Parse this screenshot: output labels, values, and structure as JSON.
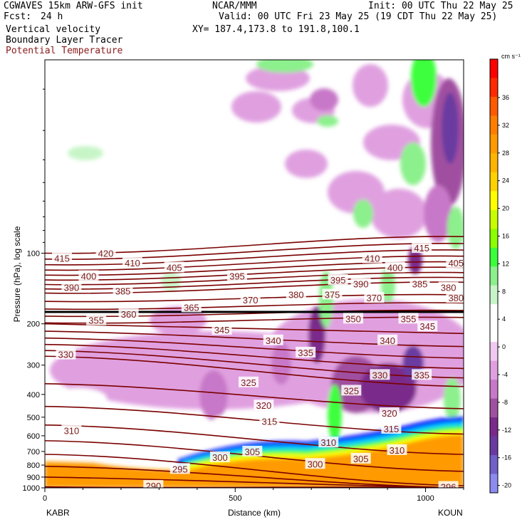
{
  "header": {
    "model": "CGWAVES 15km ARW-GFS init",
    "center": "NCAR/MMM",
    "init": "Init: 00 UTC Thu 22 May 25",
    "fcst_label": "Fcst:",
    "fcst_value": "24 h",
    "valid": "Valid: 00 UTC Fri 23 May 25 (19 CDT Thu 22 May 25)",
    "xy": "XY= 187.4,173.8 to 191.8,100.1",
    "field1": "Vertical velocity",
    "field2": "Boundary Layer Tracer",
    "field3": "Potential Temperature",
    "field3_color": "#8b1a1a"
  },
  "colorbar": {
    "units": "cm s⁻¹",
    "colors": [
      "#ff0000",
      "#ff2a00",
      "#ff5a00",
      "#ff7e00",
      "#ff9a00",
      "#ffb400",
      "#ffd200",
      "#ffff00",
      "#c8ff00",
      "#8cff00",
      "#3cff3c",
      "#8cf08c",
      "#c8f5c8",
      "#ffffff",
      "#ffffff",
      "#f0c8f0",
      "#e0a0e0",
      "#c878c8",
      "#a050a0",
      "#7a2a8a",
      "#6a3aa0",
      "#7060c8",
      "#8c8cf0"
    ],
    "labels": [
      "36",
      "32",
      "28",
      "24",
      "20",
      "16",
      "12",
      "8",
      "4",
      "0",
      "-4",
      "-8",
      "-12",
      "-16",
      "-20"
    ]
  },
  "chart_data": {
    "type": "heatmap",
    "title": "",
    "xlabel": "Distance (km)",
    "ylabel": "Pressure (hPa), log scale",
    "x_ticks": [
      0,
      500,
      1000
    ],
    "xlim": [
      0,
      1100
    ],
    "y_ticks": [
      100,
      200,
      300,
      400,
      500,
      600,
      700,
      800,
      900,
      1000
    ],
    "ylim": [
      1000,
      15
    ],
    "y_scale": "log",
    "x_endpoints": {
      "left": "KABR",
      "right": "KOUN"
    },
    "theta_contour_labels": [
      {
        "value": "415",
        "x": 45,
        "p": 105
      },
      {
        "value": "420",
        "x": 160,
        "p": 100
      },
      {
        "value": "410",
        "x": 230,
        "p": 110
      },
      {
        "value": "405",
        "x": 340,
        "p": 115
      },
      {
        "value": "400",
        "x": 115,
        "p": 125
      },
      {
        "value": "395",
        "x": 505,
        "p": 125
      },
      {
        "value": "390",
        "x": 70,
        "p": 140
      },
      {
        "value": "385",
        "x": 205,
        "p": 145
      },
      {
        "value": "380",
        "x": 660,
        "p": 150
      },
      {
        "value": "375",
        "x": 755,
        "p": 150
      },
      {
        "value": "370",
        "x": 540,
        "p": 158
      },
      {
        "value": "370",
        "x": 865,
        "p": 155
      },
      {
        "value": "365",
        "x": 385,
        "p": 170
      },
      {
        "value": "360",
        "x": 220,
        "p": 182
      },
      {
        "value": "355",
        "x": 135,
        "p": 193
      },
      {
        "value": "350",
        "x": 810,
        "p": 190
      },
      {
        "value": "345",
        "x": 465,
        "p": 212
      },
      {
        "value": "340",
        "x": 600,
        "p": 235
      },
      {
        "value": "335",
        "x": 685,
        "p": 265
      },
      {
        "value": "330",
        "x": 55,
        "p": 270
      },
      {
        "value": "330",
        "x": 880,
        "p": 330
      },
      {
        "value": "325",
        "x": 535,
        "p": 355
      },
      {
        "value": "325",
        "x": 805,
        "p": 385
      },
      {
        "value": "320",
        "x": 575,
        "p": 445
      },
      {
        "value": "320",
        "x": 905,
        "p": 480
      },
      {
        "value": "315",
        "x": 590,
        "p": 520
      },
      {
        "value": "315",
        "x": 910,
        "p": 560
      },
      {
        "value": "310",
        "x": 70,
        "p": 570
      },
      {
        "value": "310",
        "x": 745,
        "p": 640
      },
      {
        "value": "310",
        "x": 925,
        "p": 690
      },
      {
        "value": "305",
        "x": 545,
        "p": 700
      },
      {
        "value": "305",
        "x": 830,
        "p": 750
      },
      {
        "value": "300",
        "x": 460,
        "p": 740
      },
      {
        "value": "300",
        "x": 710,
        "p": 790
      },
      {
        "value": "295",
        "x": 355,
        "p": 830
      },
      {
        "value": "290",
        "x": 285,
        "p": 980
      },
      {
        "value": "296",
        "x": 1060,
        "p": 990
      }
    ],
    "right_edge_labels": [
      {
        "value": "415",
        "x": 990,
        "p": 95
      },
      {
        "value": "410",
        "x": 860,
        "p": 105
      },
      {
        "value": "405",
        "x": 1080,
        "p": 110
      },
      {
        "value": "400",
        "x": 920,
        "p": 115
      },
      {
        "value": "395",
        "x": 770,
        "p": 130
      },
      {
        "value": "390",
        "x": 830,
        "p": 135
      },
      {
        "value": "385",
        "x": 985,
        "p": 135
      },
      {
        "value": "380",
        "x": 1060,
        "p": 140
      },
      {
        "value": "380",
        "x": 1080,
        "p": 155
      },
      {
        "value": "355",
        "x": 955,
        "p": 190
      },
      {
        "value": "345",
        "x": 1005,
        "p": 205
      },
      {
        "value": "340",
        "x": 900,
        "p": 235
      },
      {
        "value": "335",
        "x": 990,
        "p": 330
      }
    ]
  }
}
